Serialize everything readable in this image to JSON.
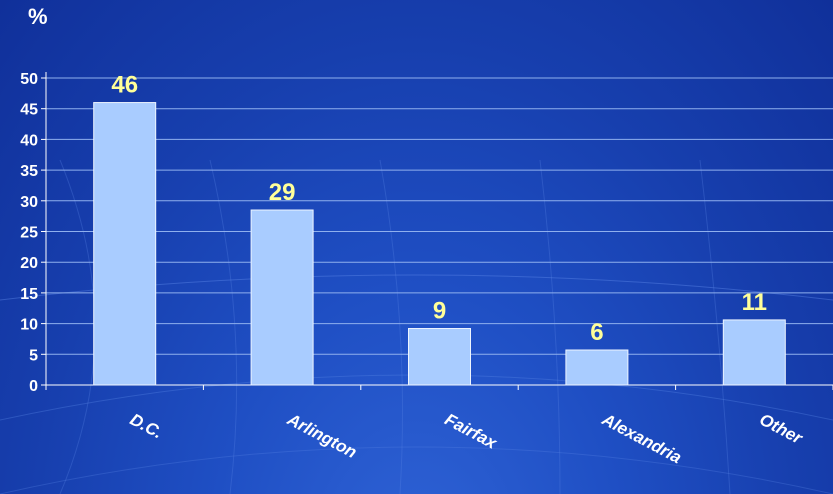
{
  "chart_data": {
    "type": "bar",
    "unit_label": "%",
    "categories": [
      "D.C.",
      "Arlington",
      "Fairfax",
      "Alexandria",
      "Other"
    ],
    "values": [
      46,
      29,
      9,
      6,
      11
    ],
    "bar_heights": [
      46,
      28.5,
      9.2,
      5.7,
      10.6
    ],
    "ylim": [
      0,
      50
    ],
    "yticks": [
      0,
      5,
      10,
      15,
      20,
      25,
      30,
      35,
      40,
      45,
      50
    ],
    "grid": true,
    "legend": "none",
    "colors": {
      "bar": "#a9ccff",
      "bar_edge": "#eef5ff",
      "data_label": "#ffff99",
      "text": "#ffffff",
      "grid": "#8fb0ee"
    }
  }
}
